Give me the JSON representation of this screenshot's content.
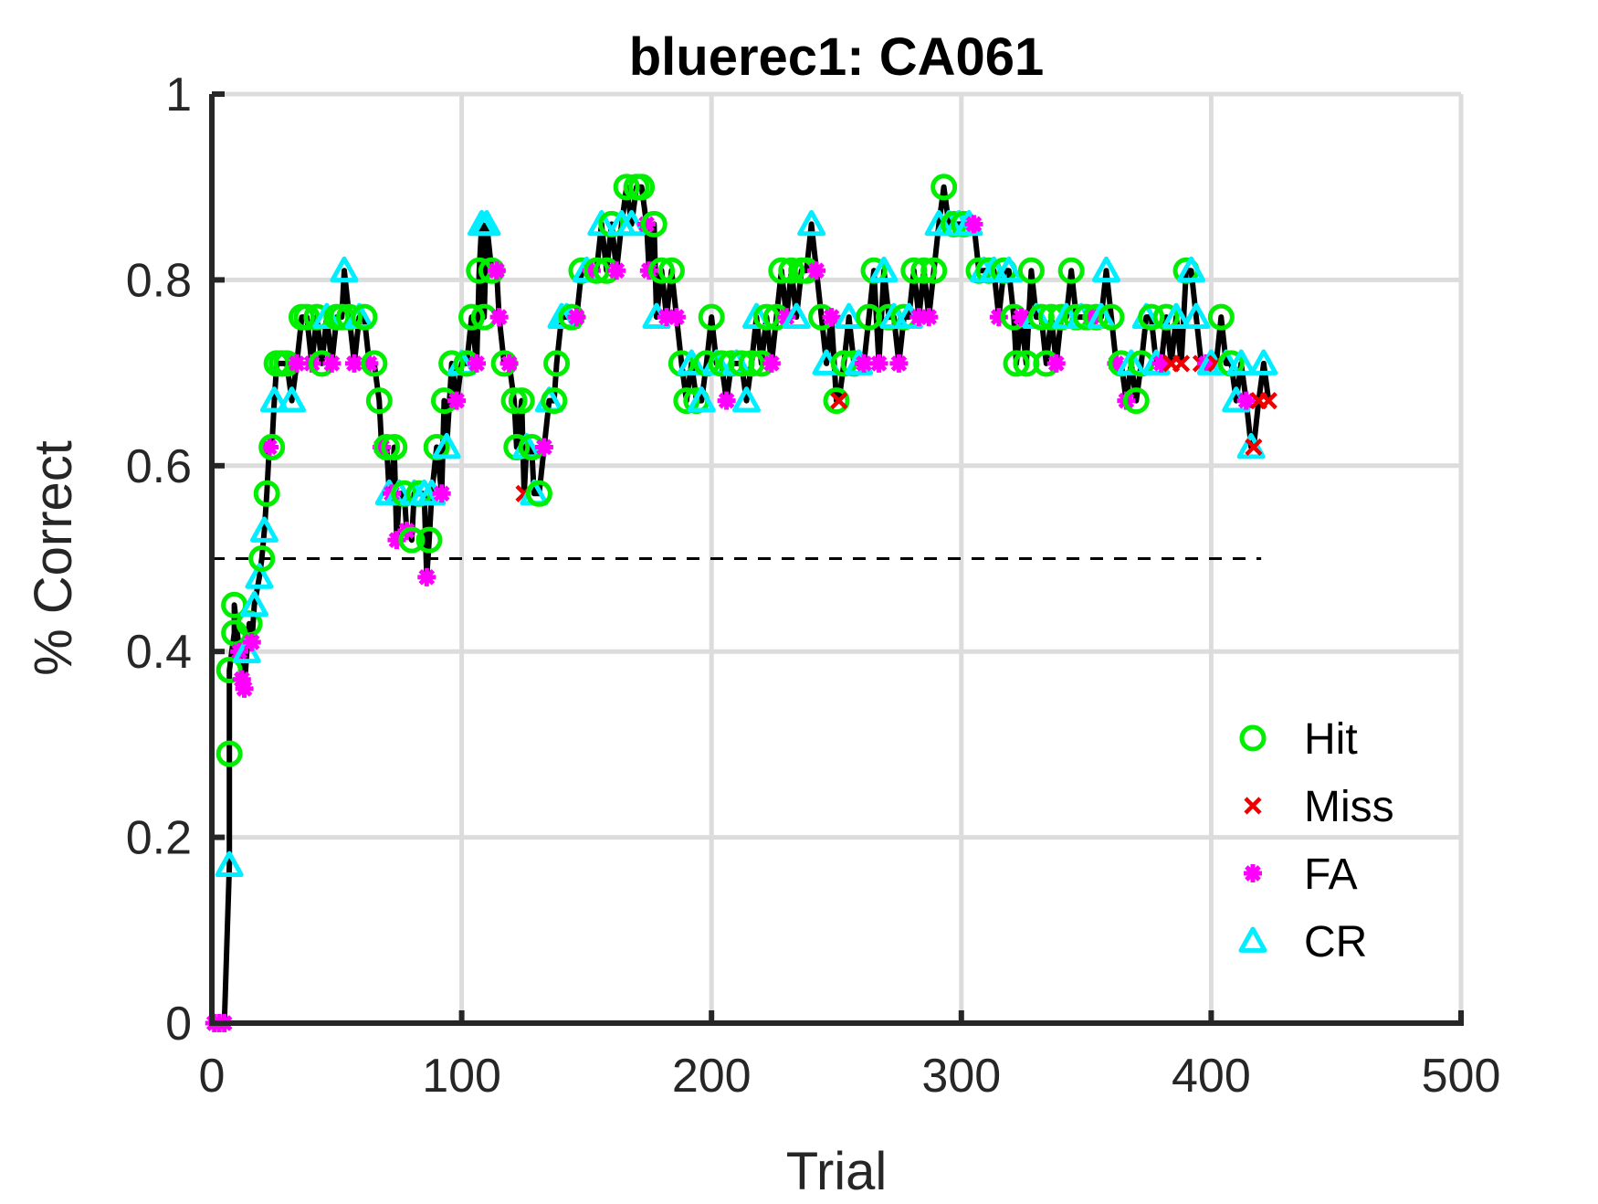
{
  "chart_data": {
    "type": "line",
    "title": "bluerec1: CA061",
    "xlabel": "Trial",
    "ylabel": "% Correct",
    "xlim": [
      0,
      500
    ],
    "ylim": [
      0,
      1
    ],
    "xticks": [
      0,
      100,
      200,
      300,
      400,
      500
    ],
    "yticks": [
      0,
      0.2,
      0.4,
      0.6,
      0.8,
      1
    ],
    "xtick_labels": [
      "0",
      "100",
      "200",
      "300",
      "400",
      "500"
    ],
    "ytick_labels": [
      "0",
      "0.2",
      "0.4",
      "0.6",
      "0.8",
      "1"
    ],
    "grid": true,
    "legend_position": "bottom-right",
    "chance_line": {
      "y": 0.5,
      "x": [
        0,
        420
      ]
    },
    "colors": {
      "line": "#000000",
      "hit": "#00ee00",
      "miss": "#ee0000",
      "fa": "#ff00ff",
      "cr": "#00eeff",
      "chance": "#000000"
    },
    "series": [
      {
        "name": "Hit",
        "marker": "circle",
        "color": "#00ee00"
      },
      {
        "name": "Miss",
        "marker": "x",
        "color": "#ee0000"
      },
      {
        "name": "FA",
        "marker": "star",
        "color": "#ff00ff"
      },
      {
        "name": "CR",
        "marker": "triangle",
        "color": "#00eeff"
      }
    ],
    "points": [
      [
        1,
        0,
        "FA"
      ],
      [
        3,
        0,
        "FA"
      ],
      [
        5,
        0,
        "FA"
      ],
      [
        7,
        0.17,
        "CR"
      ],
      [
        7,
        0.29,
        "Hit"
      ],
      [
        7,
        0.38,
        "Hit"
      ],
      [
        9,
        0.42,
        "Hit"
      ],
      [
        9,
        0.45,
        "Hit"
      ],
      [
        11,
        0.4,
        "FA"
      ],
      [
        12,
        0.37,
        "FA"
      ],
      [
        13,
        0.36,
        "FA"
      ],
      [
        14,
        0.4,
        "CR"
      ],
      [
        15,
        0.43,
        "Hit"
      ],
      [
        16,
        0.41,
        "FA"
      ],
      [
        17,
        0.45,
        "CR"
      ],
      [
        19,
        0.48,
        "CR"
      ],
      [
        20,
        0.5,
        "Hit"
      ],
      [
        21,
        0.53,
        "CR"
      ],
      [
        22,
        0.57,
        "Hit"
      ],
      [
        23,
        0.62,
        "FA"
      ],
      [
        24,
        0.62,
        "Hit"
      ],
      [
        25,
        0.67,
        "CR"
      ],
      [
        26,
        0.71,
        "Hit"
      ],
      [
        28,
        0.71,
        "Hit"
      ],
      [
        30,
        0.71,
        "Hit"
      ],
      [
        32,
        0.67,
        "CR"
      ],
      [
        34,
        0.71,
        "FA"
      ],
      [
        36,
        0.76,
        "Hit"
      ],
      [
        38,
        0.76,
        "Hit"
      ],
      [
        40,
        0.71,
        "FA"
      ],
      [
        42,
        0.76,
        "Hit"
      ],
      [
        44,
        0.71,
        "Hit"
      ],
      [
        46,
        0.76,
        "CR"
      ],
      [
        48,
        0.71,
        "FA"
      ],
      [
        50,
        0.76,
        "Hit"
      ],
      [
        52,
        0.76,
        "Hit"
      ],
      [
        53,
        0.81,
        "CR"
      ],
      [
        55,
        0.76,
        "Hit"
      ],
      [
        57,
        0.71,
        "FA"
      ],
      [
        59,
        0.76,
        "CR"
      ],
      [
        61,
        0.76,
        "Hit"
      ],
      [
        63,
        0.71,
        "FA"
      ],
      [
        65,
        0.71,
        "Hit"
      ],
      [
        67,
        0.67,
        "Hit"
      ],
      [
        68,
        0.62,
        "FA"
      ],
      [
        70,
        0.62,
        "Hit"
      ],
      [
        71,
        0.57,
        "CR"
      ],
      [
        72,
        0.57,
        "FA"
      ],
      [
        73,
        0.62,
        "Hit"
      ],
      [
        74,
        0.52,
        "FA"
      ],
      [
        75,
        0.57,
        "CR"
      ],
      [
        77,
        0.57,
        "Hit"
      ],
      [
        78,
        0.53,
        "FA"
      ],
      [
        80,
        0.52,
        "Hit"
      ],
      [
        81,
        0.57,
        "CR"
      ],
      [
        83,
        0.57,
        "Hit"
      ],
      [
        85,
        0.57,
        "CR"
      ],
      [
        86,
        0.48,
        "FA"
      ],
      [
        87,
        0.52,
        "Hit"
      ],
      [
        88,
        0.57,
        "CR"
      ],
      [
        90,
        0.62,
        "Hit"
      ],
      [
        92,
        0.57,
        "FA"
      ],
      [
        93,
        0.67,
        "Hit"
      ],
      [
        94,
        0.62,
        "CR"
      ],
      [
        96,
        0.71,
        "Hit"
      ],
      [
        98,
        0.67,
        "FA"
      ],
      [
        100,
        0.71,
        "CR"
      ],
      [
        102,
        0.71,
        "Hit"
      ],
      [
        104,
        0.76,
        "Hit"
      ],
      [
        106,
        0.71,
        "FA"
      ],
      [
        107,
        0.81,
        "Hit"
      ],
      [
        108,
        0.86,
        "CR"
      ],
      [
        109,
        0.76,
        "Hit"
      ],
      [
        110,
        0.86,
        "CR"
      ],
      [
        112,
        0.81,
        "Hit"
      ],
      [
        114,
        0.81,
        "FA"
      ],
      [
        115,
        0.76,
        "FA"
      ],
      [
        117,
        0.71,
        "Hit"
      ],
      [
        119,
        0.71,
        "FA"
      ],
      [
        121,
        0.67,
        "Hit"
      ],
      [
        122,
        0.62,
        "Hit"
      ],
      [
        124,
        0.67,
        "Hit"
      ],
      [
        125,
        0.57,
        "Miss"
      ],
      [
        126,
        0.62,
        "CR"
      ],
      [
        128,
        0.62,
        "Hit"
      ],
      [
        129,
        0.57,
        "CR"
      ],
      [
        131,
        0.57,
        "Hit"
      ],
      [
        133,
        0.62,
        "FA"
      ],
      [
        135,
        0.67,
        "CR"
      ],
      [
        137,
        0.67,
        "Hit"
      ],
      [
        138,
        0.71,
        "Hit"
      ],
      [
        140,
        0.76,
        "CR"
      ],
      [
        142,
        0.76,
        "CR"
      ],
      [
        144,
        0.76,
        "Hit"
      ],
      [
        146,
        0.76,
        "FA"
      ],
      [
        148,
        0.81,
        "Hit"
      ],
      [
        150,
        0.81,
        "CR"
      ],
      [
        152,
        0.81,
        "FA"
      ],
      [
        154,
        0.81,
        "Hit"
      ],
      [
        156,
        0.86,
        "CR"
      ],
      [
        158,
        0.81,
        "Hit"
      ],
      [
        160,
        0.86,
        "Hit"
      ],
      [
        162,
        0.81,
        "FA"
      ],
      [
        164,
        0.86,
        "CR"
      ],
      [
        166,
        0.9,
        "Hit"
      ],
      [
        168,
        0.86,
        "CR"
      ],
      [
        170,
        0.9,
        "Hit"
      ],
      [
        172,
        0.9,
        "Hit"
      ],
      [
        174,
        0.86,
        "FA"
      ],
      [
        175,
        0.81,
        "FA"
      ],
      [
        177,
        0.86,
        "Hit"
      ],
      [
        178,
        0.76,
        "CR"
      ],
      [
        180,
        0.81,
        "Hit"
      ],
      [
        182,
        0.76,
        "FA"
      ],
      [
        184,
        0.81,
        "Hit"
      ],
      [
        186,
        0.76,
        "FA"
      ],
      [
        188,
        0.71,
        "Hit"
      ],
      [
        190,
        0.67,
        "Hit"
      ],
      [
        192,
        0.71,
        "CR"
      ],
      [
        194,
        0.67,
        "Hit"
      ],
      [
        196,
        0.67,
        "CR"
      ],
      [
        198,
        0.71,
        "Hit"
      ],
      [
        200,
        0.76,
        "Hit"
      ],
      [
        202,
        0.71,
        "CR"
      ],
      [
        204,
        0.71,
        "Hit"
      ],
      [
        206,
        0.67,
        "FA"
      ],
      [
        208,
        0.71,
        "Hit"
      ],
      [
        210,
        0.71,
        "CR"
      ],
      [
        212,
        0.71,
        "Hit"
      ],
      [
        214,
        0.67,
        "CR"
      ],
      [
        216,
        0.71,
        "Hit"
      ],
      [
        218,
        0.76,
        "CR"
      ],
      [
        220,
        0.71,
        "Hit"
      ],
      [
        222,
        0.76,
        "Hit"
      ],
      [
        224,
        0.71,
        "FA"
      ],
      [
        226,
        0.76,
        "Hit"
      ],
      [
        228,
        0.81,
        "Hit"
      ],
      [
        230,
        0.76,
        "FA"
      ],
      [
        232,
        0.81,
        "Hit"
      ],
      [
        234,
        0.76,
        "CR"
      ],
      [
        236,
        0.81,
        "Hit"
      ],
      [
        238,
        0.81,
        "Hit"
      ],
      [
        240,
        0.86,
        "CR"
      ],
      [
        242,
        0.81,
        "FA"
      ],
      [
        244,
        0.76,
        "Hit"
      ],
      [
        246,
        0.71,
        "CR"
      ],
      [
        248,
        0.76,
        "FA"
      ],
      [
        250,
        0.67,
        "Hit"
      ],
      [
        251,
        0.67,
        "Miss"
      ],
      [
        253,
        0.71,
        "Hit"
      ],
      [
        255,
        0.76,
        "CR"
      ],
      [
        257,
        0.71,
        "Hit"
      ],
      [
        259,
        0.71,
        "CR"
      ],
      [
        261,
        0.71,
        "FA"
      ],
      [
        263,
        0.76,
        "Hit"
      ],
      [
        265,
        0.81,
        "Hit"
      ],
      [
        267,
        0.71,
        "FA"
      ],
      [
        269,
        0.81,
        "CR"
      ],
      [
        271,
        0.76,
        "Hit"
      ],
      [
        273,
        0.76,
        "CR"
      ],
      [
        275,
        0.71,
        "FA"
      ],
      [
        277,
        0.76,
        "Hit"
      ],
      [
        279,
        0.76,
        "CR"
      ],
      [
        281,
        0.81,
        "Hit"
      ],
      [
        283,
        0.76,
        "FA"
      ],
      [
        285,
        0.81,
        "Hit"
      ],
      [
        287,
        0.76,
        "FA"
      ],
      [
        289,
        0.81,
        "Hit"
      ],
      [
        291,
        0.86,
        "CR"
      ],
      [
        293,
        0.9,
        "Hit"
      ],
      [
        295,
        0.86,
        "CR"
      ],
      [
        297,
        0.86,
        "Hit"
      ],
      [
        299,
        0.86,
        "CR"
      ],
      [
        301,
        0.86,
        "Hit"
      ],
      [
        303,
        0.86,
        "CR"
      ],
      [
        305,
        0.86,
        "FA"
      ],
      [
        307,
        0.81,
        "Hit"
      ],
      [
        309,
        0.81,
        "CR"
      ],
      [
        311,
        0.81,
        "Hit"
      ],
      [
        313,
        0.81,
        "CR"
      ],
      [
        315,
        0.76,
        "FA"
      ],
      [
        317,
        0.81,
        "Hit"
      ],
      [
        319,
        0.81,
        "CR"
      ],
      [
        321,
        0.76,
        "Hit"
      ],
      [
        322,
        0.71,
        "Hit"
      ],
      [
        324,
        0.76,
        "FA"
      ],
      [
        326,
        0.71,
        "Hit"
      ],
      [
        328,
        0.81,
        "Hit"
      ],
      [
        330,
        0.76,
        "CR"
      ],
      [
        332,
        0.76,
        "Hit"
      ],
      [
        334,
        0.71,
        "Hit"
      ],
      [
        336,
        0.76,
        "Hit"
      ],
      [
        338,
        0.71,
        "FA"
      ],
      [
        340,
        0.76,
        "Hit"
      ],
      [
        342,
        0.76,
        "CR"
      ],
      [
        344,
        0.81,
        "Hit"
      ],
      [
        346,
        0.76,
        "Hit"
      ],
      [
        348,
        0.76,
        "CR"
      ],
      [
        350,
        0.76,
        "Hit"
      ],
      [
        352,
        0.76,
        "FA"
      ],
      [
        354,
        0.76,
        "Hit"
      ],
      [
        356,
        0.76,
        "CR"
      ],
      [
        358,
        0.81,
        "CR"
      ],
      [
        360,
        0.76,
        "Hit"
      ],
      [
        362,
        0.71,
        "FA"
      ],
      [
        364,
        0.71,
        "Hit"
      ],
      [
        366,
        0.67,
        "FA"
      ],
      [
        368,
        0.71,
        "CR"
      ],
      [
        370,
        0.67,
        "Hit"
      ],
      [
        372,
        0.71,
        "Hit"
      ],
      [
        374,
        0.76,
        "CR"
      ],
      [
        376,
        0.76,
        "Hit"
      ],
      [
        378,
        0.71,
        "CR"
      ],
      [
        380,
        0.71,
        "FA"
      ],
      [
        382,
        0.76,
        "Hit"
      ],
      [
        384,
        0.71,
        "Miss"
      ],
      [
        386,
        0.76,
        "CR"
      ],
      [
        388,
        0.71,
        "Miss"
      ],
      [
        390,
        0.81,
        "Hit"
      ],
      [
        392,
        0.81,
        "CR"
      ],
      [
        394,
        0.76,
        "CR"
      ],
      [
        396,
        0.71,
        "Miss"
      ],
      [
        398,
        0.71,
        "FA"
      ],
      [
        400,
        0.71,
        "CR"
      ],
      [
        402,
        0.71,
        "Miss"
      ],
      [
        404,
        0.76,
        "Hit"
      ],
      [
        406,
        0.71,
        "CR"
      ],
      [
        408,
        0.71,
        "Hit"
      ],
      [
        410,
        0.67,
        "CR"
      ],
      [
        412,
        0.71,
        "CR"
      ],
      [
        414,
        0.67,
        "FA"
      ],
      [
        416,
        0.62,
        "CR"
      ],
      [
        417,
        0.62,
        "Miss"
      ],
      [
        419,
        0.67,
        "Miss"
      ],
      [
        421,
        0.71,
        "CR"
      ],
      [
        423,
        0.67,
        "Miss"
      ]
    ]
  }
}
